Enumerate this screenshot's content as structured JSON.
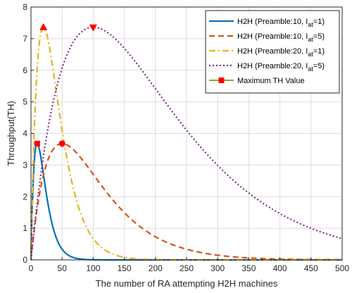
{
  "chart_data": {
    "type": "line",
    "xlabel": "The number of RA attempting H2H machines",
    "ylabel": "Throughput(TH)",
    "xlim": [
      0,
      500
    ],
    "ylim": [
      0,
      8
    ],
    "xticks": [
      0,
      50,
      100,
      150,
      200,
      250,
      300,
      350,
      400,
      450,
      500
    ],
    "yticks": [
      0,
      1,
      2,
      3,
      4,
      5,
      6,
      7,
      8
    ],
    "grid": true,
    "legend_position": "top-right",
    "series": [
      {
        "name_prefix": "H2H (Preamble:10, I",
        "name_sub": "at",
        "name_suffix": "=1)",
        "preambles": 10,
        "Iat": 1,
        "color": "#0072BD",
        "style": "solid",
        "max_x": 10,
        "max_y": 3.68,
        "max_marker": "square"
      },
      {
        "name_prefix": "H2H (Preamble:10, I",
        "name_sub": "at",
        "name_suffix": "=5)",
        "preambles": 10,
        "Iat": 5,
        "color": "#D95319",
        "style": "dashed",
        "max_x": 50,
        "max_y": 3.68,
        "max_marker": "circle"
      },
      {
        "name_prefix": "H2H (Preamble:20, I",
        "name_sub": "at",
        "name_suffix": "=1)",
        "preambles": 20,
        "Iat": 1,
        "color": "#EDB120",
        "style": "dashdot",
        "max_x": 20,
        "max_y": 7.36,
        "max_marker": "triangle-up"
      },
      {
        "name_prefix": "H2H (Preamble:20, I",
        "name_sub": "at",
        "name_suffix": "=5)",
        "preambles": 20,
        "Iat": 5,
        "color": "#7E2F8E",
        "style": "dotted",
        "max_x": 100,
        "max_y": 7.36,
        "max_marker": "triangle-down"
      }
    ],
    "max_legend": {
      "name": "Maximum TH Value",
      "color": "#FF0000",
      "line_color": "#5a8a00"
    }
  }
}
